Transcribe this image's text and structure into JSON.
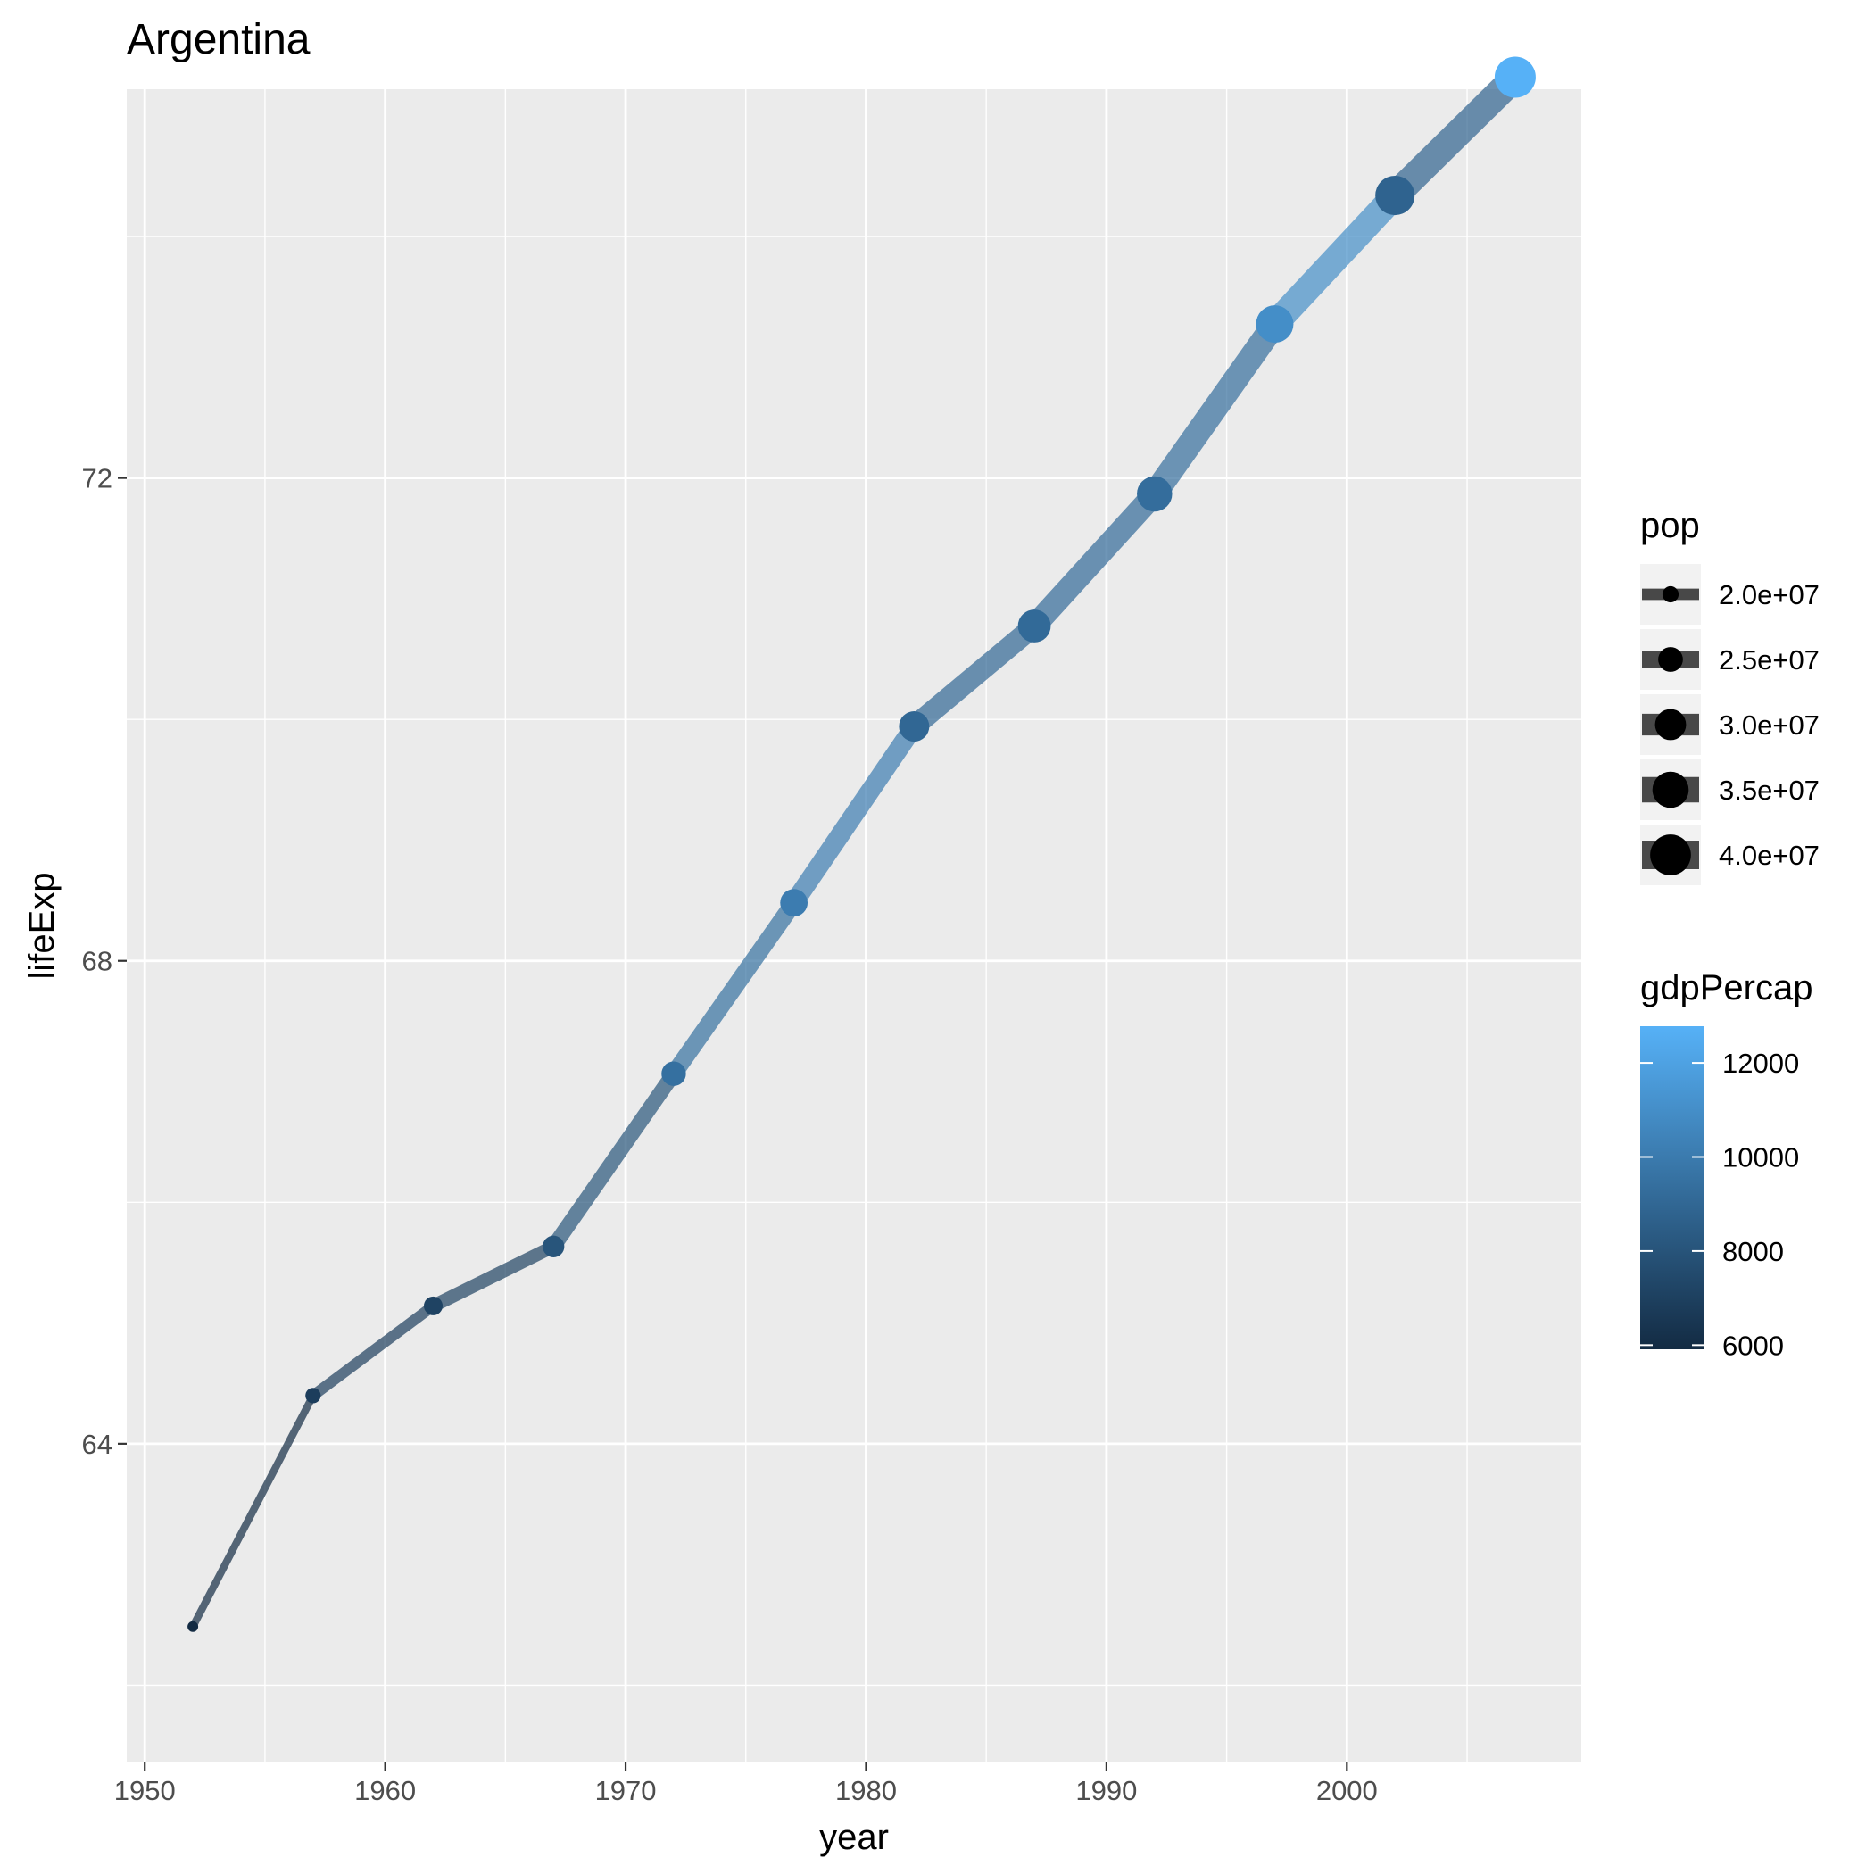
{
  "chart_data": {
    "type": "line",
    "title": "Argentina",
    "xlabel": "year",
    "ylabel": "lifeExp",
    "xlim": [
      1949.25,
      2009.75
    ],
    "ylim": [
      61.36,
      75.22
    ],
    "x_ticks_major": [
      1950,
      1960,
      1970,
      1980,
      1990,
      2000
    ],
    "x_ticks_minor": [
      1955,
      1965,
      1975,
      1985,
      1995,
      2005
    ],
    "y_ticks_major": [
      64,
      68,
      72
    ],
    "y_ticks_minor": [
      62,
      66,
      70,
      74
    ],
    "grid": true,
    "series": [
      {
        "x": [
          1952,
          1957,
          1962,
          1967,
          1972,
          1977,
          1982,
          1987,
          1992,
          1997,
          2002,
          2007
        ],
        "lifeExp": [
          62.485,
          64.399,
          65.142,
          65.634,
          67.065,
          68.481,
          69.942,
          70.774,
          71.868,
          73.275,
          74.34,
          75.32
        ],
        "pop": [
          17876956,
          19610538,
          21283783,
          22934225,
          24779799,
          26983828,
          29341374,
          31620918,
          33958947,
          36203463,
          38331121,
          40301927
        ],
        "gdpPercap": [
          5911.32,
          6856.86,
          7133.17,
          8052.95,
          9443.04,
          10079.03,
          8997.9,
          9139.67,
          9308.42,
          10967.28,
          8797.64,
          12779.38
        ]
      }
    ],
    "legend": {
      "placement": "right",
      "size": {
        "title": "pop",
        "breaks": [
          20000000,
          25000000,
          30000000,
          35000000,
          40000000
        ],
        "labels": [
          "2.0e+07",
          "2.5e+07",
          "3.0e+07",
          "3.5e+07",
          "4.0e+07"
        ]
      },
      "color": {
        "title": "gdpPercap",
        "low_color": "#132B43",
        "high_color": "#56B1F7",
        "limits": [
          5911.32,
          12779.38
        ],
        "breaks": [
          6000,
          8000,
          10000,
          12000
        ],
        "labels": [
          "6000",
          "8000",
          "10000",
          "12000"
        ]
      }
    }
  }
}
